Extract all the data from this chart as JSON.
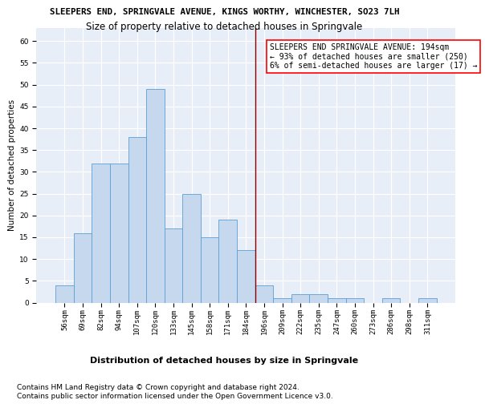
{
  "title": "SLEEPERS END, SPRINGVALE AVENUE, KINGS WORTHY, WINCHESTER, SO23 7LH",
  "subtitle": "Size of property relative to detached houses in Springvale",
  "xlabel": "Distribution of detached houses by size in Springvale",
  "ylabel": "Number of detached properties",
  "categories": [
    "56sqm",
    "69sqm",
    "82sqm",
    "94sqm",
    "107sqm",
    "120sqm",
    "133sqm",
    "145sqm",
    "158sqm",
    "171sqm",
    "184sqm",
    "196sqm",
    "209sqm",
    "222sqm",
    "235sqm",
    "247sqm",
    "260sqm",
    "273sqm",
    "286sqm",
    "298sqm",
    "311sqm"
  ],
  "values": [
    4,
    16,
    32,
    32,
    38,
    49,
    17,
    25,
    15,
    19,
    12,
    4,
    1,
    2,
    2,
    1,
    1,
    0,
    1,
    0,
    1
  ],
  "bar_color": "#c5d8ed",
  "bar_edge_color": "#5a9fd4",
  "red_line_index": 10.5,
  "annotation_text": "SLEEPERS END SPRINGVALE AVENUE: 194sqm\n← 93% of detached houses are smaller (250)\n6% of semi-detached houses are larger (17) →",
  "annotation_box_color": "white",
  "annotation_box_edge": "red",
  "ylim": [
    0,
    63
  ],
  "yticks": [
    0,
    5,
    10,
    15,
    20,
    25,
    30,
    35,
    40,
    45,
    50,
    55,
    60
  ],
  "footer1": "Contains HM Land Registry data © Crown copyright and database right 2024.",
  "footer2": "Contains public sector information licensed under the Open Government Licence v3.0.",
  "background_color": "#e8eef8",
  "title_fontsize": 7.8,
  "subtitle_fontsize": 8.5,
  "ylabel_fontsize": 7.5,
  "xlabel_fontsize": 8.0,
  "tick_fontsize": 6.5,
  "annotation_fontsize": 7.0,
  "footer_fontsize": 6.5
}
